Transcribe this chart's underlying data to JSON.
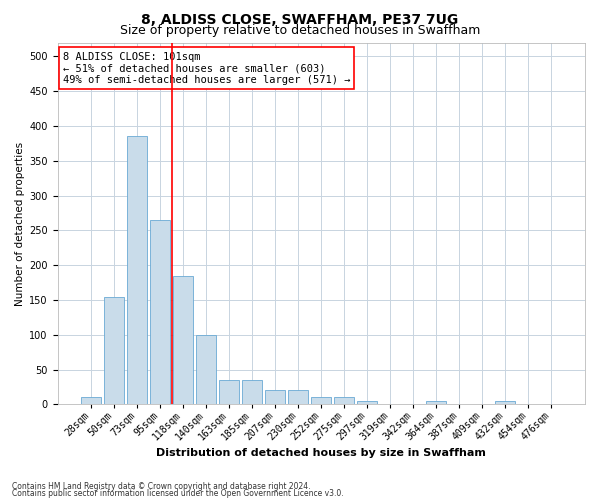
{
  "title": "8, ALDISS CLOSE, SWAFFHAM, PE37 7UG",
  "subtitle": "Size of property relative to detached houses in Swaffham",
  "xlabel": "Distribution of detached houses by size in Swaffham",
  "ylabel": "Number of detached properties",
  "footer_line1": "Contains HM Land Registry data © Crown copyright and database right 2024.",
  "footer_line2": "Contains public sector information licensed under the Open Government Licence v3.0.",
  "bin_labels": [
    "28sqm",
    "50sqm",
    "73sqm",
    "95sqm",
    "118sqm",
    "140sqm",
    "163sqm",
    "185sqm",
    "207sqm",
    "230sqm",
    "252sqm",
    "275sqm",
    "297sqm",
    "319sqm",
    "342sqm",
    "364sqm",
    "387sqm",
    "409sqm",
    "432sqm",
    "454sqm",
    "476sqm"
  ],
  "bar_values": [
    10,
    155,
    385,
    265,
    185,
    100,
    35,
    35,
    20,
    20,
    10,
    10,
    5,
    0,
    0,
    5,
    0,
    0,
    5,
    0,
    0
  ],
  "bar_color": "#c9dcea",
  "bar_edge_color": "#6aaad4",
  "vline_x_pos": 3.5,
  "vline_color": "red",
  "annotation_text": "8 ALDISS CLOSE: 101sqm\n← 51% of detached houses are smaller (603)\n49% of semi-detached houses are larger (571) →",
  "annotation_box_color": "white",
  "annotation_box_edge_color": "red",
  "ylim": [
    0,
    520
  ],
  "yticks": [
    0,
    50,
    100,
    150,
    200,
    250,
    300,
    350,
    400,
    450,
    500
  ],
  "background_color": "white",
  "grid_color": "#c8d4e0",
  "title_fontsize": 10,
  "subtitle_fontsize": 9,
  "xlabel_fontsize": 8,
  "ylabel_fontsize": 7.5,
  "tick_fontsize": 7,
  "annotation_fontsize": 7.5,
  "footer_fontsize": 5.5
}
